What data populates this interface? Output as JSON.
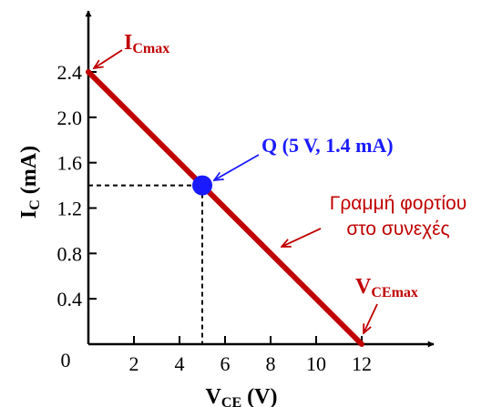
{
  "chart_data": {
    "type": "line",
    "x": [
      0,
      12
    ],
    "xlim": [
      0,
      12
    ],
    "ylim": [
      0,
      2.4
    ],
    "x_ticks": [
      "2",
      "4",
      "6",
      "8",
      "10",
      "12"
    ],
    "y_ticks": [
      "0.4",
      "0.8",
      "1.2",
      "1.6",
      "2.0",
      "2.4"
    ],
    "origin_label": "0",
    "xlabel": {
      "main": "V",
      "sub": "CE",
      "tail": " (V)"
    },
    "ylabel": {
      "main": "I",
      "sub": "C",
      "tail": " (mA)"
    },
    "grid": false,
    "series": [
      {
        "name": "Γραμμή φορτίου στο συνεχές",
        "x": [
          0,
          12
        ],
        "y": [
          2.4,
          0
        ]
      }
    ],
    "q_point": {
      "x": 5,
      "y": 1.4,
      "label": "Q (5 V, 1.4 mA)"
    },
    "annotations": {
      "icmax": {
        "main": "I",
        "sub": "Cmax"
      },
      "vcemax": {
        "main": "V",
        "sub": "CEmax"
      },
      "load_line_line1": "Γραμμή φορτίου",
      "load_line_line2": "στο συνεχές"
    },
    "colors": {
      "load_line": "#c00000",
      "q_point": "#1a1aff",
      "axis": "#000000",
      "annotation_red": "#c00000",
      "annotation_blue": "#1a1aff"
    }
  }
}
